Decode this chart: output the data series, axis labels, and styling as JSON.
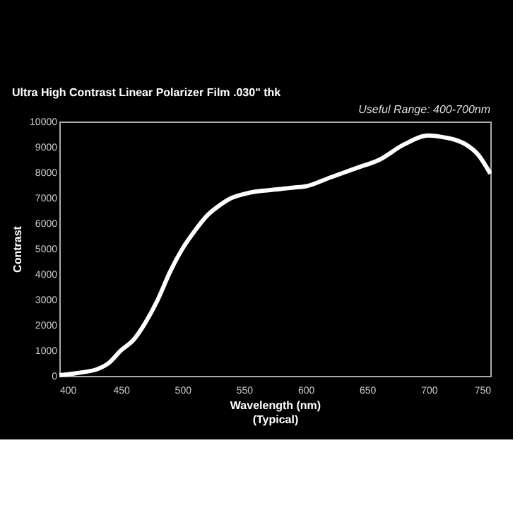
{
  "chart_data": {
    "type": "line",
    "title": "Ultra High Contrast Linear Polarizer Film .030\" thk",
    "xlabel": "Wavelength (nm)\n(Typical)",
    "ylabel": "Contrast",
    "annotations": [
      "Useful Range: 400-700nm"
    ],
    "x": [
      400,
      420,
      430,
      440,
      450,
      460,
      470,
      480,
      490,
      500,
      510,
      520,
      530,
      540,
      550,
      560,
      570,
      580,
      590,
      600,
      620,
      640,
      660,
      680,
      700,
      710,
      720,
      730,
      740,
      750
    ],
    "series": [
      {
        "color": "#ffffff",
        "values": [
          30,
          150,
          250,
          500,
          1000,
          1400,
          2100,
          3000,
          4100,
          5000,
          5700,
          6300,
          6700,
          7000,
          7150,
          7250,
          7300,
          7350,
          7400,
          7450,
          7800,
          8150,
          8500,
          9100,
          9450,
          9400,
          9300,
          9100,
          8700,
          7950
        ]
      }
    ],
    "xlim": [
      400,
      750
    ],
    "xticks": [
      400,
      450,
      500,
      550,
      600,
      650,
      700,
      750
    ],
    "ylim": [
      0,
      10000
    ],
    "yticks": [
      0,
      1000,
      2000,
      3000,
      4000,
      5000,
      6000,
      7000,
      8000,
      9000,
      10000
    ],
    "grid": false,
    "legend": false,
    "marker": "none",
    "line_style": "solid"
  }
}
